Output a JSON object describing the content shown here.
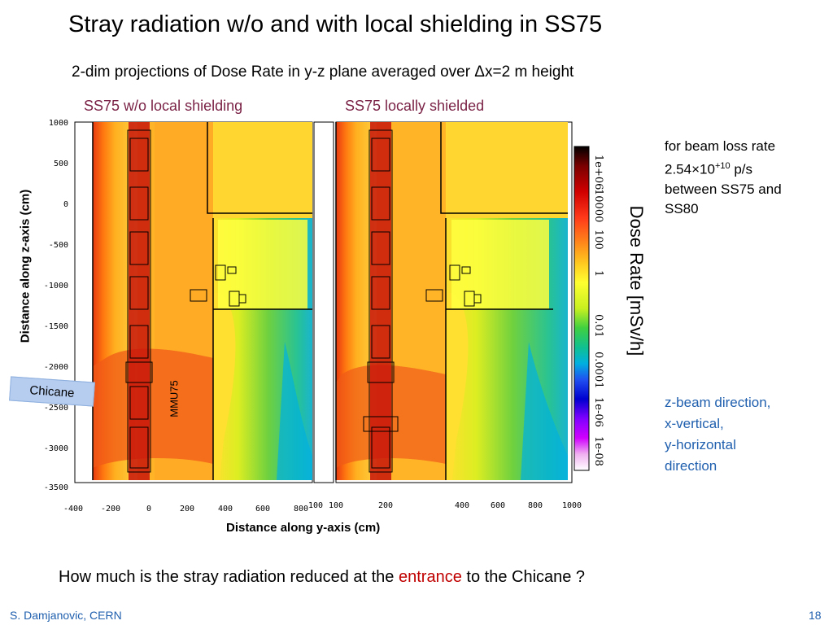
{
  "title": "Stray radiation w/o and with local shielding in SS75",
  "subtitle": "2-dim projections of Dose Rate in y-z plane averaged over Δx=2 m height",
  "panels": {
    "left_label": "SS75 w/o local shielding",
    "right_label": "SS75 locally shielded"
  },
  "axes": {
    "y_title": "Distance along z-axis (cm)",
    "y_ticks": [
      "1000",
      "500",
      "0",
      "-500",
      "-1000",
      "-1500",
      "-2000",
      "-2500",
      "-3000",
      "-3500"
    ],
    "x_title": "Distance along y-axis (cm)",
    "x_ticks_left": [
      "-400",
      "-200",
      "0",
      "200",
      "400",
      "600",
      "800",
      "100"
    ],
    "x_ticks_right": [
      "100",
      "200",
      "400",
      "600",
      "800",
      "1000"
    ]
  },
  "colorbar": {
    "title": "Dose Rate [mSv/h]",
    "tick_labels": [
      "1e+06",
      "10000",
      "100",
      "1",
      "0.01",
      "0.0001",
      "1e-06",
      "1e-08"
    ]
  },
  "annotations": {
    "chicane": "Chicane",
    "mmu": "MMU75",
    "beam_loss_line1": "for beam loss rate",
    "beam_loss_value": "2.54×10",
    "beam_loss_exp": "+10",
    "beam_loss_unit": " p/s",
    "beam_loss_line3": "between SS75 and",
    "beam_loss_line4": "SS80",
    "dir_z": "z-beam direction,",
    "dir_x": "x-vertical,",
    "dir_y": "y-horizontal",
    "dir_tail": "direction"
  },
  "question": {
    "prefix": "How much is the stray radiation reduced at the ",
    "highlight": "entrance",
    "suffix": " to the Chicane ?"
  },
  "footer": {
    "author": "S. Damjanovic, CERN",
    "page": "18"
  },
  "colors": {
    "panel_label": "#7b2346",
    "accent_blue": "#1f5fae",
    "highlight_red": "#c00000"
  }
}
